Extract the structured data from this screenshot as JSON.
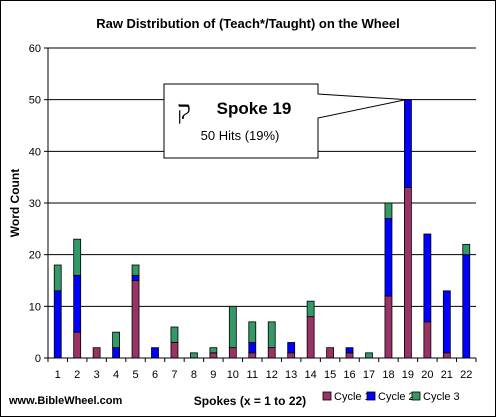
{
  "chart_data": {
    "type": "bar",
    "stacked": true,
    "title": "Raw Distribution of (Teach*/Taught) on the Wheel",
    "xlabel": "Spokes (x = 1 to 22)",
    "ylabel": "Word Count",
    "ylim": [
      0,
      60
    ],
    "yticks": [
      0,
      10,
      20,
      30,
      40,
      50,
      60
    ],
    "grid": "horizontal",
    "categories": [
      "1",
      "2",
      "3",
      "4",
      "5",
      "6",
      "7",
      "8",
      "9",
      "10",
      "11",
      "12",
      "13",
      "14",
      "15",
      "16",
      "17",
      "18",
      "19",
      "20",
      "21",
      "22"
    ],
    "series": [
      {
        "name": "Cycle 1",
        "color": "#993366",
        "values": [
          0,
          5,
          2,
          0,
          15,
          0,
          3,
          0,
          1,
          2,
          1,
          2,
          1,
          8,
          2,
          1,
          0,
          12,
          33,
          7,
          1,
          0
        ]
      },
      {
        "name": "Cycle 2",
        "color": "#0000ff",
        "values": [
          13,
          11,
          0,
          2,
          1,
          2,
          0,
          0,
          0,
          0,
          2,
          0,
          2,
          0,
          0,
          1,
          0,
          15,
          17,
          17,
          12,
          20
        ]
      },
      {
        "name": "Cycle 3",
        "color": "#339966",
        "values": [
          5,
          7,
          0,
          3,
          2,
          0,
          3,
          1,
          1,
          8,
          4,
          5,
          0,
          3,
          0,
          0,
          1,
          3,
          0,
          0,
          0,
          2
        ]
      }
    ],
    "legend_position": "bottom-right",
    "annotation": {
      "symbol": "ק",
      "title": "Spoke 19",
      "subtitle": "50 Hits (19%)",
      "points_to": "19"
    }
  },
  "footer": {
    "website": "www.BibleWheel.com"
  }
}
